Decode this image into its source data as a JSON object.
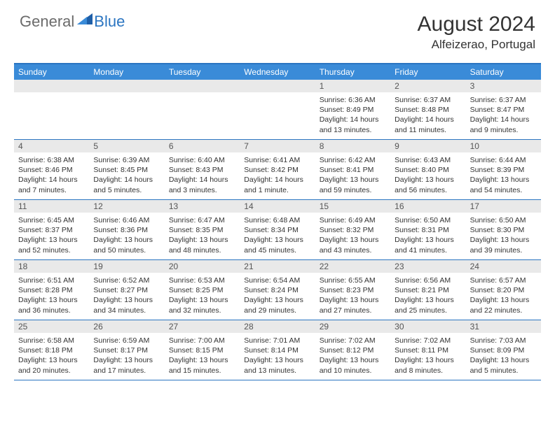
{
  "logo": {
    "general": "General",
    "blue": "Blue"
  },
  "title": "August 2024",
  "location": "Alfeizerao, Portugal",
  "colors": {
    "header_bar": "#3a8bd8",
    "border": "#2b75c1",
    "daynum_bg": "#e9e9e9",
    "text": "#333333",
    "logo_gray": "#6b6b6b",
    "logo_blue": "#2b75c1"
  },
  "weekdays": [
    "Sunday",
    "Monday",
    "Tuesday",
    "Wednesday",
    "Thursday",
    "Friday",
    "Saturday"
  ],
  "weeks": [
    [
      {
        "num": "",
        "lines": []
      },
      {
        "num": "",
        "lines": []
      },
      {
        "num": "",
        "lines": []
      },
      {
        "num": "",
        "lines": []
      },
      {
        "num": "1",
        "lines": [
          "Sunrise: 6:36 AM",
          "Sunset: 8:49 PM",
          "Daylight: 14 hours",
          "and 13 minutes."
        ]
      },
      {
        "num": "2",
        "lines": [
          "Sunrise: 6:37 AM",
          "Sunset: 8:48 PM",
          "Daylight: 14 hours",
          "and 11 minutes."
        ]
      },
      {
        "num": "3",
        "lines": [
          "Sunrise: 6:37 AM",
          "Sunset: 8:47 PM",
          "Daylight: 14 hours",
          "and 9 minutes."
        ]
      }
    ],
    [
      {
        "num": "4",
        "lines": [
          "Sunrise: 6:38 AM",
          "Sunset: 8:46 PM",
          "Daylight: 14 hours",
          "and 7 minutes."
        ]
      },
      {
        "num": "5",
        "lines": [
          "Sunrise: 6:39 AM",
          "Sunset: 8:45 PM",
          "Daylight: 14 hours",
          "and 5 minutes."
        ]
      },
      {
        "num": "6",
        "lines": [
          "Sunrise: 6:40 AM",
          "Sunset: 8:43 PM",
          "Daylight: 14 hours",
          "and 3 minutes."
        ]
      },
      {
        "num": "7",
        "lines": [
          "Sunrise: 6:41 AM",
          "Sunset: 8:42 PM",
          "Daylight: 14 hours",
          "and 1 minute."
        ]
      },
      {
        "num": "8",
        "lines": [
          "Sunrise: 6:42 AM",
          "Sunset: 8:41 PM",
          "Daylight: 13 hours",
          "and 59 minutes."
        ]
      },
      {
        "num": "9",
        "lines": [
          "Sunrise: 6:43 AM",
          "Sunset: 8:40 PM",
          "Daylight: 13 hours",
          "and 56 minutes."
        ]
      },
      {
        "num": "10",
        "lines": [
          "Sunrise: 6:44 AM",
          "Sunset: 8:39 PM",
          "Daylight: 13 hours",
          "and 54 minutes."
        ]
      }
    ],
    [
      {
        "num": "11",
        "lines": [
          "Sunrise: 6:45 AM",
          "Sunset: 8:37 PM",
          "Daylight: 13 hours",
          "and 52 minutes."
        ]
      },
      {
        "num": "12",
        "lines": [
          "Sunrise: 6:46 AM",
          "Sunset: 8:36 PM",
          "Daylight: 13 hours",
          "and 50 minutes."
        ]
      },
      {
        "num": "13",
        "lines": [
          "Sunrise: 6:47 AM",
          "Sunset: 8:35 PM",
          "Daylight: 13 hours",
          "and 48 minutes."
        ]
      },
      {
        "num": "14",
        "lines": [
          "Sunrise: 6:48 AM",
          "Sunset: 8:34 PM",
          "Daylight: 13 hours",
          "and 45 minutes."
        ]
      },
      {
        "num": "15",
        "lines": [
          "Sunrise: 6:49 AM",
          "Sunset: 8:32 PM",
          "Daylight: 13 hours",
          "and 43 minutes."
        ]
      },
      {
        "num": "16",
        "lines": [
          "Sunrise: 6:50 AM",
          "Sunset: 8:31 PM",
          "Daylight: 13 hours",
          "and 41 minutes."
        ]
      },
      {
        "num": "17",
        "lines": [
          "Sunrise: 6:50 AM",
          "Sunset: 8:30 PM",
          "Daylight: 13 hours",
          "and 39 minutes."
        ]
      }
    ],
    [
      {
        "num": "18",
        "lines": [
          "Sunrise: 6:51 AM",
          "Sunset: 8:28 PM",
          "Daylight: 13 hours",
          "and 36 minutes."
        ]
      },
      {
        "num": "19",
        "lines": [
          "Sunrise: 6:52 AM",
          "Sunset: 8:27 PM",
          "Daylight: 13 hours",
          "and 34 minutes."
        ]
      },
      {
        "num": "20",
        "lines": [
          "Sunrise: 6:53 AM",
          "Sunset: 8:25 PM",
          "Daylight: 13 hours",
          "and 32 minutes."
        ]
      },
      {
        "num": "21",
        "lines": [
          "Sunrise: 6:54 AM",
          "Sunset: 8:24 PM",
          "Daylight: 13 hours",
          "and 29 minutes."
        ]
      },
      {
        "num": "22",
        "lines": [
          "Sunrise: 6:55 AM",
          "Sunset: 8:23 PM",
          "Daylight: 13 hours",
          "and 27 minutes."
        ]
      },
      {
        "num": "23",
        "lines": [
          "Sunrise: 6:56 AM",
          "Sunset: 8:21 PM",
          "Daylight: 13 hours",
          "and 25 minutes."
        ]
      },
      {
        "num": "24",
        "lines": [
          "Sunrise: 6:57 AM",
          "Sunset: 8:20 PM",
          "Daylight: 13 hours",
          "and 22 minutes."
        ]
      }
    ],
    [
      {
        "num": "25",
        "lines": [
          "Sunrise: 6:58 AM",
          "Sunset: 8:18 PM",
          "Daylight: 13 hours",
          "and 20 minutes."
        ]
      },
      {
        "num": "26",
        "lines": [
          "Sunrise: 6:59 AM",
          "Sunset: 8:17 PM",
          "Daylight: 13 hours",
          "and 17 minutes."
        ]
      },
      {
        "num": "27",
        "lines": [
          "Sunrise: 7:00 AM",
          "Sunset: 8:15 PM",
          "Daylight: 13 hours",
          "and 15 minutes."
        ]
      },
      {
        "num": "28",
        "lines": [
          "Sunrise: 7:01 AM",
          "Sunset: 8:14 PM",
          "Daylight: 13 hours",
          "and 13 minutes."
        ]
      },
      {
        "num": "29",
        "lines": [
          "Sunrise: 7:02 AM",
          "Sunset: 8:12 PM",
          "Daylight: 13 hours",
          "and 10 minutes."
        ]
      },
      {
        "num": "30",
        "lines": [
          "Sunrise: 7:02 AM",
          "Sunset: 8:11 PM",
          "Daylight: 13 hours",
          "and 8 minutes."
        ]
      },
      {
        "num": "31",
        "lines": [
          "Sunrise: 7:03 AM",
          "Sunset: 8:09 PM",
          "Daylight: 13 hours",
          "and 5 minutes."
        ]
      }
    ]
  ]
}
